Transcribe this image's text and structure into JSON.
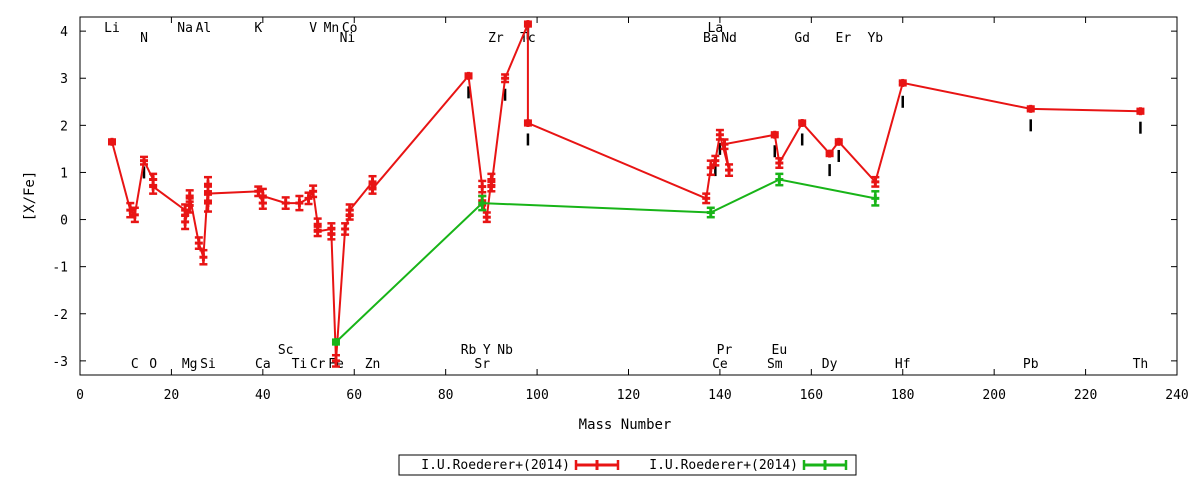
{
  "chart_data": {
    "type": "line",
    "xlabel": "Mass Number",
    "ylabel": "[X/Fe]",
    "xlim": [
      0,
      240
    ],
    "ylim": [
      -3.3,
      4.3
    ],
    "x_ticks": [
      0,
      20,
      40,
      60,
      80,
      100,
      120,
      140,
      160,
      180,
      200,
      220,
      240
    ],
    "y_ticks": [
      -3,
      -2,
      -1,
      0,
      1,
      2,
      3,
      4
    ],
    "grid": false,
    "legend_position": "bottom-center",
    "element_labels_top": [
      {
        "text": "Li",
        "x": 7,
        "row": 0
      },
      {
        "text": "N",
        "x": 14,
        "row": 1
      },
      {
        "text": "Na",
        "x": 23,
        "row": 0
      },
      {
        "text": "Al",
        "x": 27,
        "row": 0
      },
      {
        "text": "K",
        "x": 39,
        "row": 0
      },
      {
        "text": "V",
        "x": 51,
        "row": 0
      },
      {
        "text": "Mn",
        "x": 55,
        "row": 0
      },
      {
        "text": "Co",
        "x": 59,
        "row": 0
      },
      {
        "text": "Ni",
        "x": 58.5,
        "row": 1
      },
      {
        "text": "Zr",
        "x": 91,
        "row": 1
      },
      {
        "text": "Tc",
        "x": 98,
        "row": 1
      },
      {
        "text": "La",
        "x": 139,
        "row": 0
      },
      {
        "text": "Ba",
        "x": 138,
        "row": 1
      },
      {
        "text": "Nd",
        "x": 142,
        "row": 1
      },
      {
        "text": "Gd",
        "x": 158,
        "row": 1
      },
      {
        "text": "Er",
        "x": 167,
        "row": 1
      },
      {
        "text": "Yb",
        "x": 174,
        "row": 1
      }
    ],
    "element_labels_bottom": [
      {
        "text": "Sc",
        "x": 45,
        "row": 0
      },
      {
        "text": "Rb",
        "x": 85,
        "row": 0
      },
      {
        "text": "Y",
        "x": 89,
        "row": 0
      },
      {
        "text": "Nb",
        "x": 93,
        "row": 0
      },
      {
        "text": "Pr",
        "x": 141,
        "row": 0
      },
      {
        "text": "Eu",
        "x": 153,
        "row": 0
      },
      {
        "text": "C",
        "x": 12,
        "row": 1
      },
      {
        "text": "O",
        "x": 16,
        "row": 1
      },
      {
        "text": "Mg",
        "x": 24,
        "row": 1
      },
      {
        "text": "Si",
        "x": 28,
        "row": 1
      },
      {
        "text": "Ca",
        "x": 40,
        "row": 1
      },
      {
        "text": "Ti",
        "x": 48,
        "row": 1
      },
      {
        "text": "Cr",
        "x": 52,
        "row": 1
      },
      {
        "text": "Fe",
        "x": 56,
        "row": 1
      },
      {
        "text": "Zn",
        "x": 64,
        "row": 1
      },
      {
        "text": "Sr",
        "x": 88,
        "row": 1
      },
      {
        "text": "Ce",
        "x": 140,
        "row": 1
      },
      {
        "text": "Sm",
        "x": 152,
        "row": 1
      },
      {
        "text": "Dy",
        "x": 164,
        "row": 1
      },
      {
        "text": "Hf",
        "x": 180,
        "row": 1
      },
      {
        "text": "Pb",
        "x": 208,
        "row": 1
      },
      {
        "text": "Th",
        "x": 232,
        "row": 1
      }
    ],
    "series": [
      {
        "name": "I.U.Roederer+(2014)",
        "color": "#e81414",
        "points": [
          {
            "x": 7,
            "y": 1.65,
            "err": 0.05
          },
          {
            "x": 11,
            "y": 0.2,
            "err": 0.15
          },
          {
            "x": 12,
            "y": 0.1,
            "err": 0.15
          },
          {
            "x": 14,
            "y": 1.25,
            "err": 0.08
          },
          {
            "x": 16,
            "y": 0.85,
            "err": 0.12
          },
          {
            "x": 16,
            "y": 0.7,
            "err": 0.15
          },
          {
            "x": 23,
            "y": 0.2,
            "err": 0.12
          },
          {
            "x": 23,
            "y": -0.05,
            "err": 0.15
          },
          {
            "x": 24,
            "y": 0.3,
            "err": 0.15
          },
          {
            "x": 24,
            "y": 0.5,
            "err": 0.12
          },
          {
            "x": 26,
            "y": -0.5,
            "err": 0.12
          },
          {
            "x": 27,
            "y": -0.8,
            "err": 0.15
          },
          {
            "x": 28,
            "y": 0.75,
            "err": 0.15
          },
          {
            "x": 28,
            "y": 0.35,
            "err": 0.18
          },
          {
            "x": 28,
            "y": 0.55,
            "err": 0.15
          },
          {
            "x": 39,
            "y": 0.6,
            "err": 0.1
          },
          {
            "x": 40,
            "y": 0.35,
            "err": 0.12
          },
          {
            "x": 40,
            "y": 0.5,
            "err": 0.15
          },
          {
            "x": 45,
            "y": 0.35,
            "err": 0.12
          },
          {
            "x": 48,
            "y": 0.35,
            "err": 0.15
          },
          {
            "x": 50,
            "y": 0.45,
            "err": 0.12
          },
          {
            "x": 51,
            "y": 0.6,
            "err": 0.12
          },
          {
            "x": 52,
            "y": -0.1,
            "err": 0.12
          },
          {
            "x": 52,
            "y": -0.25,
            "err": 0.1
          },
          {
            "x": 55,
            "y": -0.2,
            "err": 0.12
          },
          {
            "x": 55,
            "y": -0.3,
            "err": 0.12
          },
          {
            "x": 56,
            "y": -3.0,
            "err": 0.12
          },
          {
            "x": 58,
            "y": -0.2,
            "err": 0.12
          },
          {
            "x": 59,
            "y": 0.1,
            "err": 0.1
          },
          {
            "x": 59,
            "y": 0.2,
            "err": 0.12
          },
          {
            "x": 64,
            "y": 0.8,
            "err": 0.12
          },
          {
            "x": 64,
            "y": 0.65,
            "err": 0.1
          },
          {
            "x": 85,
            "y": 3.05,
            "err": 0.05
          },
          {
            "x": 88,
            "y": 0.7,
            "err": 0.12
          },
          {
            "x": 88,
            "y": 0.4,
            "err": 0.1
          },
          {
            "x": 89,
            "y": 0.05,
            "err": 0.1
          },
          {
            "x": 90,
            "y": 0.85,
            "err": 0.12
          },
          {
            "x": 90,
            "y": 0.7,
            "err": 0.1
          },
          {
            "x": 93,
            "y": 3.0,
            "err": 0.08
          },
          {
            "x": 98,
            "y": 4.15,
            "err": 0.05
          },
          {
            "x": 98,
            "y": 2.05,
            "err": 0.05
          },
          {
            "x": 137,
            "y": 0.45,
            "err": 0.1
          },
          {
            "x": 138,
            "y": 1.1,
            "err": 0.15
          },
          {
            "x": 139,
            "y": 1.25,
            "err": 0.1
          },
          {
            "x": 140,
            "y": 1.8,
            "err": 0.1
          },
          {
            "x": 142,
            "y": 1.05,
            "err": 0.12
          },
          {
            "x": 141,
            "y": 1.6,
            "err": 0.1
          },
          {
            "x": 152,
            "y": 1.8,
            "err": 0.05
          },
          {
            "x": 153,
            "y": 1.2,
            "err": 0.1
          },
          {
            "x": 158,
            "y": 2.05,
            "err": 0.05
          },
          {
            "x": 164,
            "y": 1.4,
            "err": 0.05
          },
          {
            "x": 166,
            "y": 1.65,
            "err": 0.05
          },
          {
            "x": 174,
            "y": 0.8,
            "err": 0.1
          },
          {
            "x": 180,
            "y": 2.9,
            "err": 0.05
          },
          {
            "x": 208,
            "y": 2.35,
            "err": 0.05
          },
          {
            "x": 232,
            "y": 2.3,
            "err": 0.05
          }
        ]
      },
      {
        "name": "I.U.Roederer+(2014)",
        "color": "#18b418",
        "points": [
          {
            "x": 56,
            "y": -2.6,
            "err": 0.05
          },
          {
            "x": 88,
            "y": 0.35,
            "err": 0.15
          },
          {
            "x": 138,
            "y": 0.15,
            "err": 0.1
          },
          {
            "x": 153,
            "y": 0.85,
            "err": 0.12
          },
          {
            "x": 174,
            "y": 0.45,
            "err": 0.15
          }
        ]
      }
    ],
    "model_points": [
      {
        "x": 14,
        "y": 1.0
      },
      {
        "x": 85,
        "y": 2.7
      },
      {
        "x": 93,
        "y": 2.65
      },
      {
        "x": 98,
        "y": 1.7
      },
      {
        "x": 98,
        "y": 3.95
      },
      {
        "x": 139,
        "y": 1.05
      },
      {
        "x": 140,
        "y": 1.5
      },
      {
        "x": 152,
        "y": 1.45
      },
      {
        "x": 158,
        "y": 1.7
      },
      {
        "x": 164,
        "y": 1.05
      },
      {
        "x": 166,
        "y": 1.35
      },
      {
        "x": 180,
        "y": 2.5
      },
      {
        "x": 208,
        "y": 2.0
      },
      {
        "x": 232,
        "y": 1.95
      }
    ]
  }
}
